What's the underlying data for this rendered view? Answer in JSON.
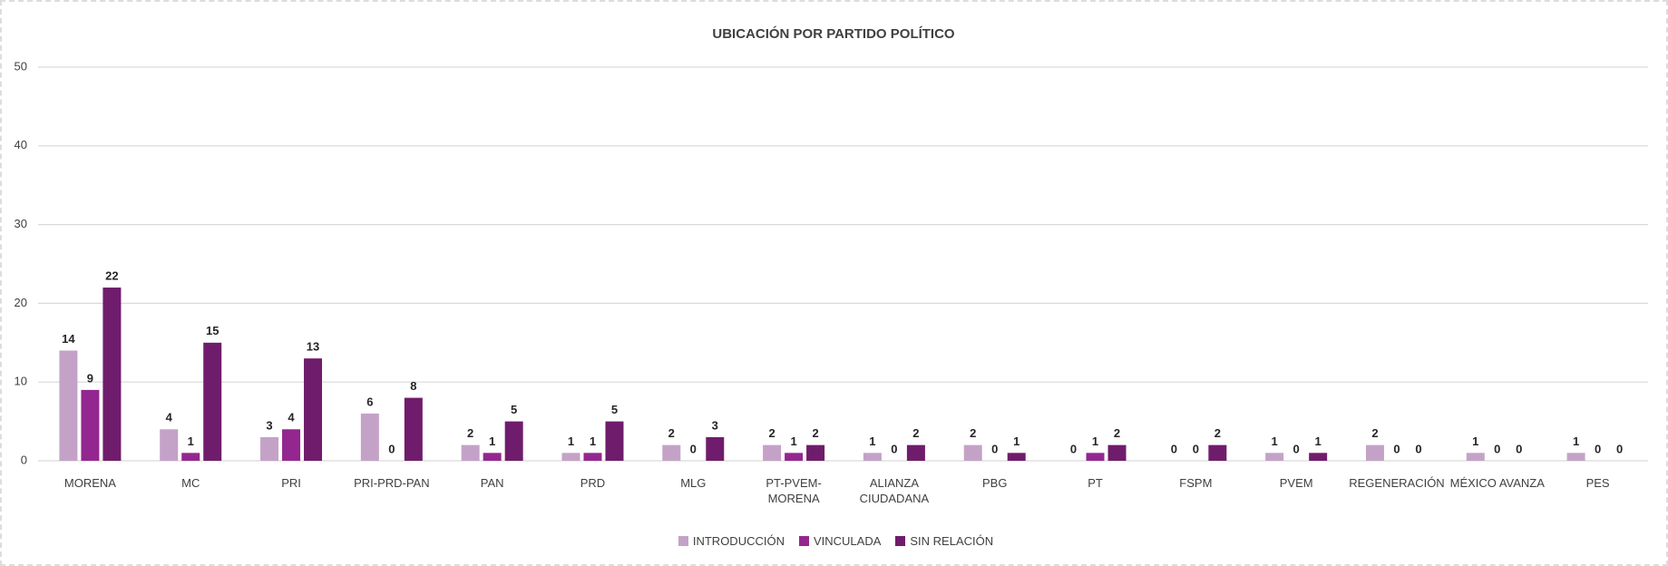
{
  "chart_data": {
    "type": "bar",
    "title": "UBICACIÓN POR PARTIDO POLÍTICO",
    "categories": [
      "MORENA",
      "MC",
      "PRI",
      "PRI-PRD-PAN",
      "PAN",
      "PRD",
      "MLG",
      "PT-PVEM-MORENA",
      "ALIANZA CIUDADANA",
      "PBG",
      "PT",
      "FSPM",
      "PVEM",
      "REGENERACIÓN",
      "MÉXICO AVANZA",
      "PES"
    ],
    "series": [
      {
        "name": "INTRODUCCIÓN",
        "color": "#c4a2c8",
        "values": [
          14,
          4,
          3,
          6,
          2,
          1,
          2,
          2,
          1,
          2,
          0,
          0,
          1,
          2,
          1,
          1
        ]
      },
      {
        "name": "VINCULADA",
        "color": "#93278f",
        "values": [
          9,
          1,
          4,
          0,
          1,
          1,
          0,
          1,
          0,
          0,
          1,
          0,
          0,
          0,
          0,
          0
        ]
      },
      {
        "name": "SIN RELACIÓN",
        "color": "#701c6c",
        "values": [
          22,
          15,
          13,
          8,
          5,
          5,
          3,
          2,
          2,
          1,
          2,
          2,
          1,
          0,
          0,
          0
        ]
      }
    ],
    "ylim": [
      0,
      50
    ],
    "yticks": [
      0,
      10,
      20,
      30,
      40,
      50
    ],
    "grid": true,
    "legend": "bottom"
  }
}
